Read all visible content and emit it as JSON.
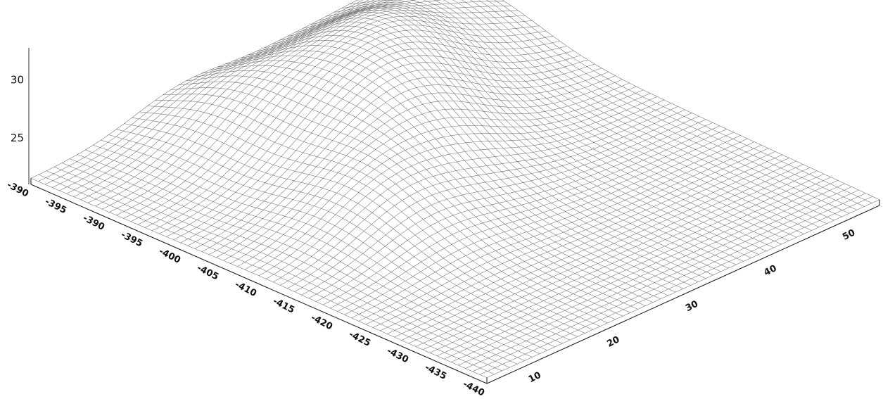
{
  "chart_data": {
    "type": "surface",
    "title": "",
    "xlabel": "",
    "ylabel": "",
    "zlabel": "",
    "x_axis": {
      "ticks": [
        "-390",
        "-395",
        "-390",
        "-395",
        "-400",
        "-405",
        "-410",
        "-415",
        "-420",
        "-425",
        "-430",
        "-435",
        "-440"
      ],
      "range": [
        -390,
        -440
      ]
    },
    "y_axis": {
      "ticks": [
        "10",
        "20",
        "30",
        "40",
        "50"
      ],
      "range": [
        5,
        55
      ]
    },
    "z_axis": {
      "ticks": [
        "25",
        "30"
      ],
      "range": [
        21,
        32
      ]
    },
    "grid": false,
    "surface": {
      "description_units": "z in data units over x (-390..-440) and y (5..55)",
      "base_level": 21.5,
      "peaks": [
        {
          "x": -400,
          "y": 38,
          "z": 31.6
        },
        {
          "x": -408,
          "y": 30,
          "z": 30.2
        },
        {
          "x": -397,
          "y": 24,
          "z": 28.5
        },
        {
          "x": -415,
          "y": 20,
          "z": 27.5
        },
        {
          "x": -395,
          "y": 50,
          "z": 27.0
        }
      ]
    }
  }
}
